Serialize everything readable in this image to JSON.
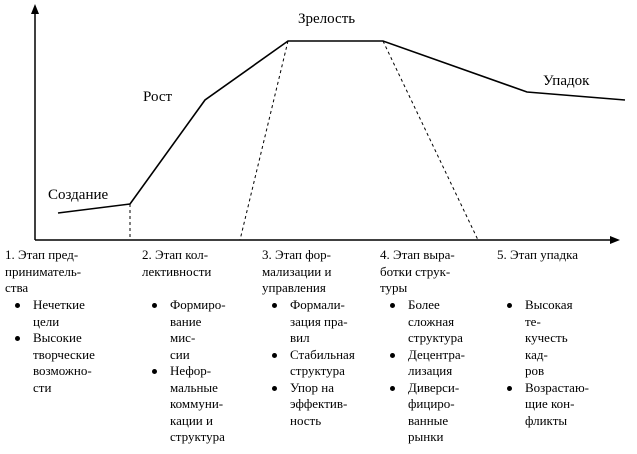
{
  "curve_labels": {
    "creation": "Создание",
    "growth": "Рост",
    "maturity": "Зрелость",
    "decline": "Упадок"
  },
  "stages": [
    {
      "title": "1. Этап пред-\nприниматель-\nства",
      "bullets": [
        "Нечеткие\nцели",
        "Высокие\nтворческие\nвозможно-\nсти"
      ]
    },
    {
      "title": "2. Этап кол-\nлективности",
      "bullets": [
        "Формиро-\nвание мис-\nсии",
        "Нефор-\nмальные\nкоммуни-\nкации и\nструктура"
      ]
    },
    {
      "title": "3. Этап фор-\nмализации и\nуправления",
      "bullets": [
        "Формали-\nзация пра-\nвил",
        "Стабильная\nструктура",
        "Упор на\nэффектив-\nность"
      ]
    },
    {
      "title": "4. Этап выра-\nботки струк-\nтуры",
      "bullets": [
        "Более\nсложная\nструктура",
        "Децентра-\nлизация",
        "Диверси-\nфициро-\nванные\nрынки"
      ]
    },
    {
      "title": "5. Этап упадка",
      "bullets": [
        "Высокая те-\nкучесть кад-\nров",
        "Возрастаю-\nщие кон-\nфликты"
      ]
    }
  ]
}
